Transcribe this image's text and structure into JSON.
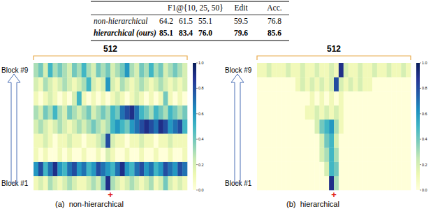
{
  "table": {
    "header": [
      "F1@{10, 25, 50}",
      "Edit",
      "Acc."
    ],
    "rows": [
      {
        "label": "non-hierarchical",
        "cells": [
          "64.2",
          "61.5",
          "55.1",
          "59.5",
          "76.8"
        ],
        "bold": false
      },
      {
        "label": "hierarchical (ours)",
        "cells": [
          "85.1",
          "83.4",
          "76.0",
          "79.6",
          "85.6"
        ],
        "bold": true
      }
    ]
  },
  "chart_data": [
    {
      "type": "heatmap",
      "title": "(a)  non-hierarchical",
      "width_label": 512,
      "annotation": "+",
      "row_labels": [
        "Block #1",
        null,
        null,
        null,
        null,
        null,
        null,
        null,
        "Block #9"
      ],
      "colorbar": {
        "range": [
          0,
          1
        ],
        "ticks": [
          {
            "value": 0,
            "label": "0.0"
          },
          {
            "value": 0.2,
            "label": "0.2"
          },
          {
            "value": 0.4,
            "label": "0.4"
          },
          {
            "value": 0.6,
            "label": "0.6"
          },
          {
            "value": 0.8,
            "label": "0.8"
          },
          {
            "value": 1,
            "label": "1.0"
          }
        ]
      },
      "cells": [
        [
          0.1,
          0.2,
          0.1,
          0.3,
          0.2,
          0.1,
          0.2,
          0.3,
          0.2,
          0.1,
          0.1,
          0.2,
          0.3,
          0.2,
          0.4,
          0.9,
          0.3,
          0.2,
          0.1,
          0.2,
          0.3,
          0.2,
          0.1,
          0.2,
          0.3,
          0.1,
          0.2,
          0.4,
          0.2,
          0.1,
          0.2,
          0.1
        ],
        [
          0.6,
          0.8,
          0.5,
          0.7,
          0.9,
          0.6,
          0.5,
          0.7,
          0.8,
          0.6,
          0.7,
          0.5,
          0.6,
          0.8,
          0.7,
          0.6,
          0.5,
          0.7,
          0.9,
          0.6,
          0.5,
          0.7,
          0.8,
          0.6,
          0.7,
          0.5,
          0.6,
          0.8,
          0.7,
          0.6,
          0.8,
          0.7
        ],
        [
          0.1,
          0.0,
          0.1,
          0.0,
          0.0,
          0.1,
          0.0,
          0.1,
          0.0,
          0.0,
          0.1,
          0.0,
          0.0,
          0.1,
          0.0,
          0.2,
          0.1,
          0.0,
          0.0,
          0.1,
          0.0,
          0.0,
          0.1,
          0.0,
          0.0,
          0.1,
          0.0,
          0.0,
          0.1,
          0.0,
          0.0,
          0.1
        ],
        [
          0.1,
          0.1,
          0.2,
          0.1,
          0.0,
          0.1,
          0.1,
          0.2,
          0.1,
          0.1,
          0.0,
          0.1,
          0.1,
          0.2,
          0.3,
          0.8,
          0.2,
          0.1,
          0.1,
          0.0,
          0.1,
          0.1,
          0.2,
          0.1,
          0.1,
          0.0,
          0.1,
          0.1,
          0.2,
          0.1,
          0.1,
          0.1
        ],
        [
          0.2,
          0.3,
          0.2,
          0.1,
          0.2,
          0.3,
          0.2,
          0.1,
          0.2,
          0.3,
          0.2,
          0.3,
          0.4,
          0.3,
          0.2,
          0.3,
          0.5,
          0.6,
          0.5,
          0.4,
          0.6,
          0.7,
          0.8,
          0.9,
          0.8,
          0.7,
          0.9,
          0.8,
          0.6,
          0.7,
          0.8,
          0.5
        ],
        [
          0.3,
          0.2,
          0.4,
          0.3,
          0.5,
          0.3,
          0.2,
          0.4,
          0.3,
          0.2,
          0.3,
          0.4,
          0.2,
          0.3,
          0.4,
          0.3,
          0.5,
          0.4,
          0.7,
          0.8,
          0.9,
          0.7,
          0.5,
          0.4,
          0.3,
          0.5,
          0.4,
          0.3,
          0.5,
          0.4,
          0.3,
          0.4
        ],
        [
          0.1,
          0.0,
          0.1,
          0.2,
          0.1,
          0.0,
          0.1,
          0.0,
          0.2,
          0.5,
          0.1,
          0.0,
          0.1,
          0.0,
          0.1,
          0.0,
          0.1,
          0.2,
          0.1,
          0.0,
          0.1,
          0.2,
          0.1,
          0.0,
          0.1,
          0.0,
          0.1,
          0.4,
          0.1,
          0.0,
          0.1,
          0.0
        ],
        [
          0.2,
          0.1,
          0.3,
          0.2,
          0.1,
          0.2,
          0.3,
          0.2,
          0.1,
          0.2,
          0.3,
          0.5,
          0.2,
          0.1,
          0.2,
          0.6,
          0.2,
          0.1,
          0.3,
          0.2,
          0.1,
          0.2,
          0.3,
          0.2,
          0.1,
          0.2,
          0.3,
          0.2,
          0.1,
          0.2,
          0.1,
          0.2
        ],
        [
          0.3,
          0.4,
          0.2,
          0.5,
          0.3,
          0.4,
          0.3,
          0.2,
          0.4,
          0.3,
          0.5,
          0.3,
          0.2,
          0.4,
          0.3,
          0.4,
          0.2,
          0.3,
          0.4,
          0.6,
          0.3,
          0.2,
          0.4,
          0.3,
          0.5,
          0.3,
          0.4,
          0.2,
          0.3,
          0.4,
          0.3,
          0.2
        ]
      ]
    },
    {
      "type": "heatmap",
      "title": "(b)  hierarchical",
      "width_label": 512,
      "annotation": "+",
      "row_labels": [
        "Block #1",
        null,
        null,
        null,
        null,
        null,
        null,
        null,
        "Block #9"
      ],
      "colorbar": {
        "range": [
          0,
          1
        ],
        "ticks": [
          {
            "value": 0,
            "label": "0.0"
          },
          {
            "value": 0.2,
            "label": "0.2"
          },
          {
            "value": 0.4,
            "label": "0.4"
          },
          {
            "value": 0.6,
            "label": "0.6"
          },
          {
            "value": 0.8,
            "label": "0.8"
          },
          {
            "value": 1,
            "label": "1.0"
          }
        ]
      },
      "cells": [
        [
          0,
          0,
          0,
          0,
          0,
          0,
          0,
          0,
          0,
          0,
          0,
          0,
          0,
          0,
          0,
          0.9,
          0.3,
          0,
          0,
          0,
          0,
          0,
          0,
          0,
          0,
          0,
          0,
          0,
          0,
          0,
          0,
          0
        ],
        [
          0,
          0,
          0,
          0,
          0,
          0,
          0,
          0,
          0,
          0,
          0,
          0,
          0,
          0,
          0.2,
          0.5,
          0.4,
          0,
          0,
          0,
          0,
          0,
          0,
          0,
          0,
          0,
          0,
          0,
          0,
          0,
          0,
          0
        ],
        [
          0,
          0,
          0,
          0,
          0,
          0,
          0,
          0,
          0,
          0,
          0,
          0,
          0,
          0.2,
          0.3,
          0.5,
          0.3,
          0,
          0,
          0,
          0,
          0,
          0,
          0,
          0,
          0,
          0,
          0,
          0,
          0,
          0,
          0
        ],
        [
          0,
          0,
          0,
          0,
          0,
          0,
          0,
          0,
          0,
          0,
          0,
          0,
          0,
          0.2,
          0.4,
          0.5,
          0.2,
          0,
          0,
          0,
          0,
          0,
          0,
          0,
          0,
          0,
          0,
          0,
          0,
          0,
          0,
          0
        ],
        [
          0,
          0,
          0,
          0,
          0,
          0,
          0,
          0,
          0,
          0,
          0,
          0,
          0.2,
          0.4,
          0.5,
          0.6,
          0.3,
          0.1,
          0,
          0,
          0,
          0,
          0,
          0,
          0,
          0,
          0,
          0,
          0,
          0,
          0,
          0
        ],
        [
          0,
          0,
          0,
          0,
          0,
          0,
          0,
          0,
          0,
          0,
          0.1,
          0.1,
          0.2,
          0.1,
          0.2,
          0.1,
          0.2,
          0.1,
          0,
          0,
          0,
          0,
          0,
          0,
          0,
          0,
          0,
          0,
          0,
          0,
          0,
          0
        ],
        [
          0,
          0,
          0,
          0,
          0,
          0,
          0,
          0,
          0,
          0,
          0,
          0.1,
          0.0,
          0.1,
          0.0,
          0.1,
          0.0,
          0.1,
          0,
          0,
          0,
          0,
          0,
          0,
          0,
          0,
          0,
          0,
          0,
          0,
          0,
          0
        ],
        [
          0,
          0,
          0,
          0,
          0,
          0,
          0,
          0,
          0.1,
          0.2,
          0.1,
          0.2,
          0.1,
          0.2,
          0.1,
          0.2,
          0.8,
          0.2,
          0.1,
          0.2,
          0.1,
          0.2,
          0.1,
          0.1,
          0,
          0,
          0,
          0,
          0,
          0,
          0,
          0
        ],
        [
          0.1,
          0.1,
          0.2,
          0.1,
          0.1,
          0.1,
          0.2,
          0.1,
          0.1,
          0.2,
          0.1,
          0.1,
          0.2,
          0.1,
          0.1,
          0.2,
          0.1,
          0.9,
          0.2,
          0.1,
          0.1,
          0.2,
          0.1,
          0.1,
          0.2,
          0.1,
          0.1,
          0.2,
          0.1,
          0.1,
          0.2,
          0.1
        ]
      ]
    }
  ]
}
